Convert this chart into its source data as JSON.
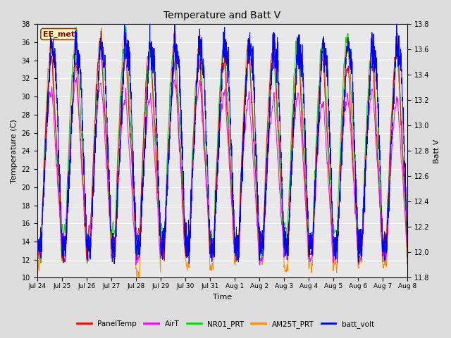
{
  "title": "Temperature and Batt V",
  "xlabel": "Time",
  "ylabel_left": "Temperature (C)",
  "ylabel_right": "Batt V",
  "annotation_text": "EE_met",
  "ylim_left": [
    10,
    38
  ],
  "ylim_right": [
    11.8,
    13.8
  ],
  "x_tick_labels": [
    "Jul 24",
    "Jul 25",
    "Jul 26",
    "Jul 27",
    "Jul 28",
    "Jul 29",
    "Jul 30",
    "Jul 31",
    "Aug 1",
    "Aug 2",
    "Aug 3",
    "Aug 4",
    "Aug 5",
    "Aug 6",
    "Aug 7",
    "Aug 8"
  ],
  "yticks_left": [
    10,
    12,
    14,
    16,
    18,
    20,
    22,
    24,
    26,
    28,
    30,
    32,
    34,
    36,
    38
  ],
  "yticks_right": [
    11.8,
    12.0,
    12.2,
    12.4,
    12.6,
    12.8,
    13.0,
    13.2,
    13.4,
    13.6,
    13.8
  ],
  "series_colors": {
    "PanelTemp": "#FF0000",
    "AirT": "#FF00FF",
    "NR01_PRT": "#00DD00",
    "AM25T_PRT": "#FF8800",
    "batt_volt": "#0000FF"
  },
  "background_plot": "#E8E8E8",
  "background_fig": "#DCDCDC",
  "grid_color": "#FFFFFF",
  "n_points": 3000,
  "days": 15,
  "seed": 42
}
